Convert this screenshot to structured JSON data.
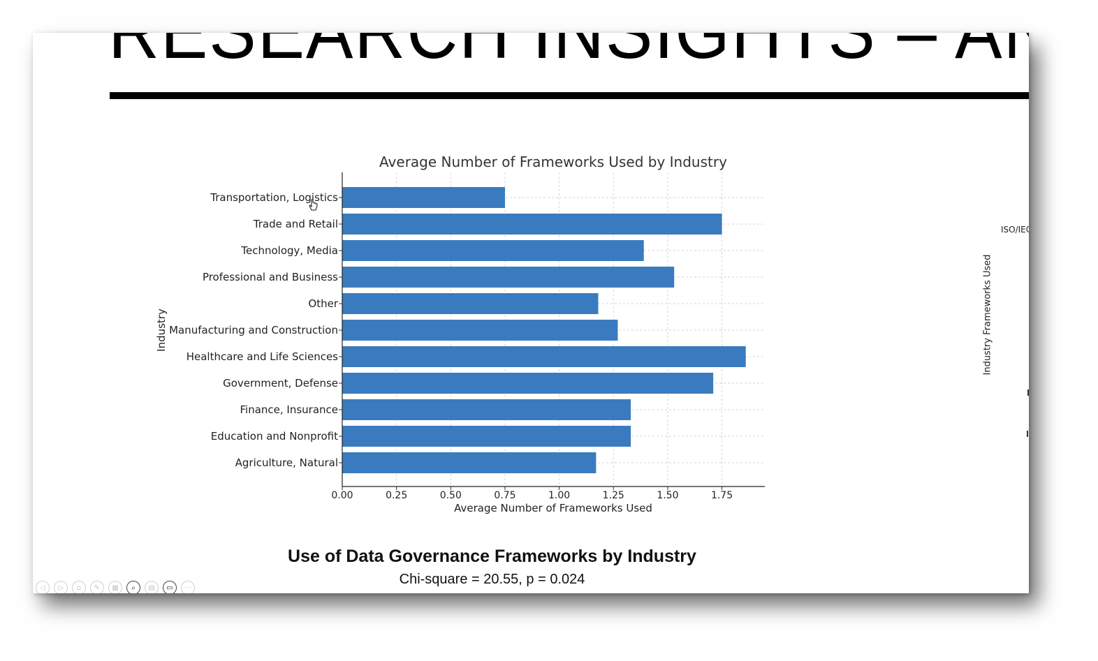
{
  "slide": {
    "title": "RESEARCH INSIGHTS – ANTH",
    "caption_title": "Use of Data Governance Frameworks by Industry",
    "caption_stats": "Chi-square = 20.55, p = 0.024",
    "side_label": "ISO/IEC",
    "side_axis_label": "Industry Frameworks Used"
  },
  "toolbar": {
    "buttons": [
      {
        "name": "previous-slide",
        "icon": "arrow-left-icon",
        "glyph": "◁"
      },
      {
        "name": "next-slide",
        "icon": "arrow-right-icon",
        "glyph": "▷"
      },
      {
        "name": "home",
        "icon": "home-icon",
        "glyph": "⌂"
      },
      {
        "name": "pen",
        "icon": "pen-icon",
        "glyph": "✎"
      },
      {
        "name": "slides-grid",
        "icon": "grid-icon",
        "glyph": "▦"
      },
      {
        "name": "zoom",
        "icon": "magnifier-icon",
        "glyph": "⌕"
      },
      {
        "name": "subtitles",
        "icon": "subtitles-icon",
        "glyph": "▤"
      },
      {
        "name": "camera",
        "icon": "camera-icon",
        "glyph": "▭"
      },
      {
        "name": "more",
        "icon": "ellipsis-icon",
        "glyph": "⋯"
      }
    ]
  },
  "chart_data": {
    "type": "bar",
    "orientation": "horizontal",
    "title": "Average Number of Frameworks Used by Industry",
    "xlabel": "Average Number of Frameworks Used",
    "ylabel": "Industry",
    "xlim": [
      0,
      1.95
    ],
    "xticks": [
      0.0,
      0.25,
      0.5,
      0.75,
      1.0,
      1.25,
      1.5,
      1.75
    ],
    "xtick_labels": [
      "0.00",
      "0.25",
      "0.50",
      "0.75",
      "1.00",
      "1.25",
      "1.50",
      "1.75"
    ],
    "grid": true,
    "bar_color": "#3a7bbf",
    "categories": [
      "Transportation, Logistics",
      "Trade and Retail",
      "Technology, Media",
      "Professional and Business",
      "Other",
      "Manufacturing and Construction",
      "Healthcare and Life Sciences",
      "Government, Defense",
      "Finance, Insurance",
      "Education and Nonprofit",
      "Agriculture, Natural"
    ],
    "values": [
      0.75,
      1.75,
      1.39,
      1.53,
      1.18,
      1.27,
      1.86,
      1.71,
      1.33,
      1.33,
      1.17
    ]
  }
}
